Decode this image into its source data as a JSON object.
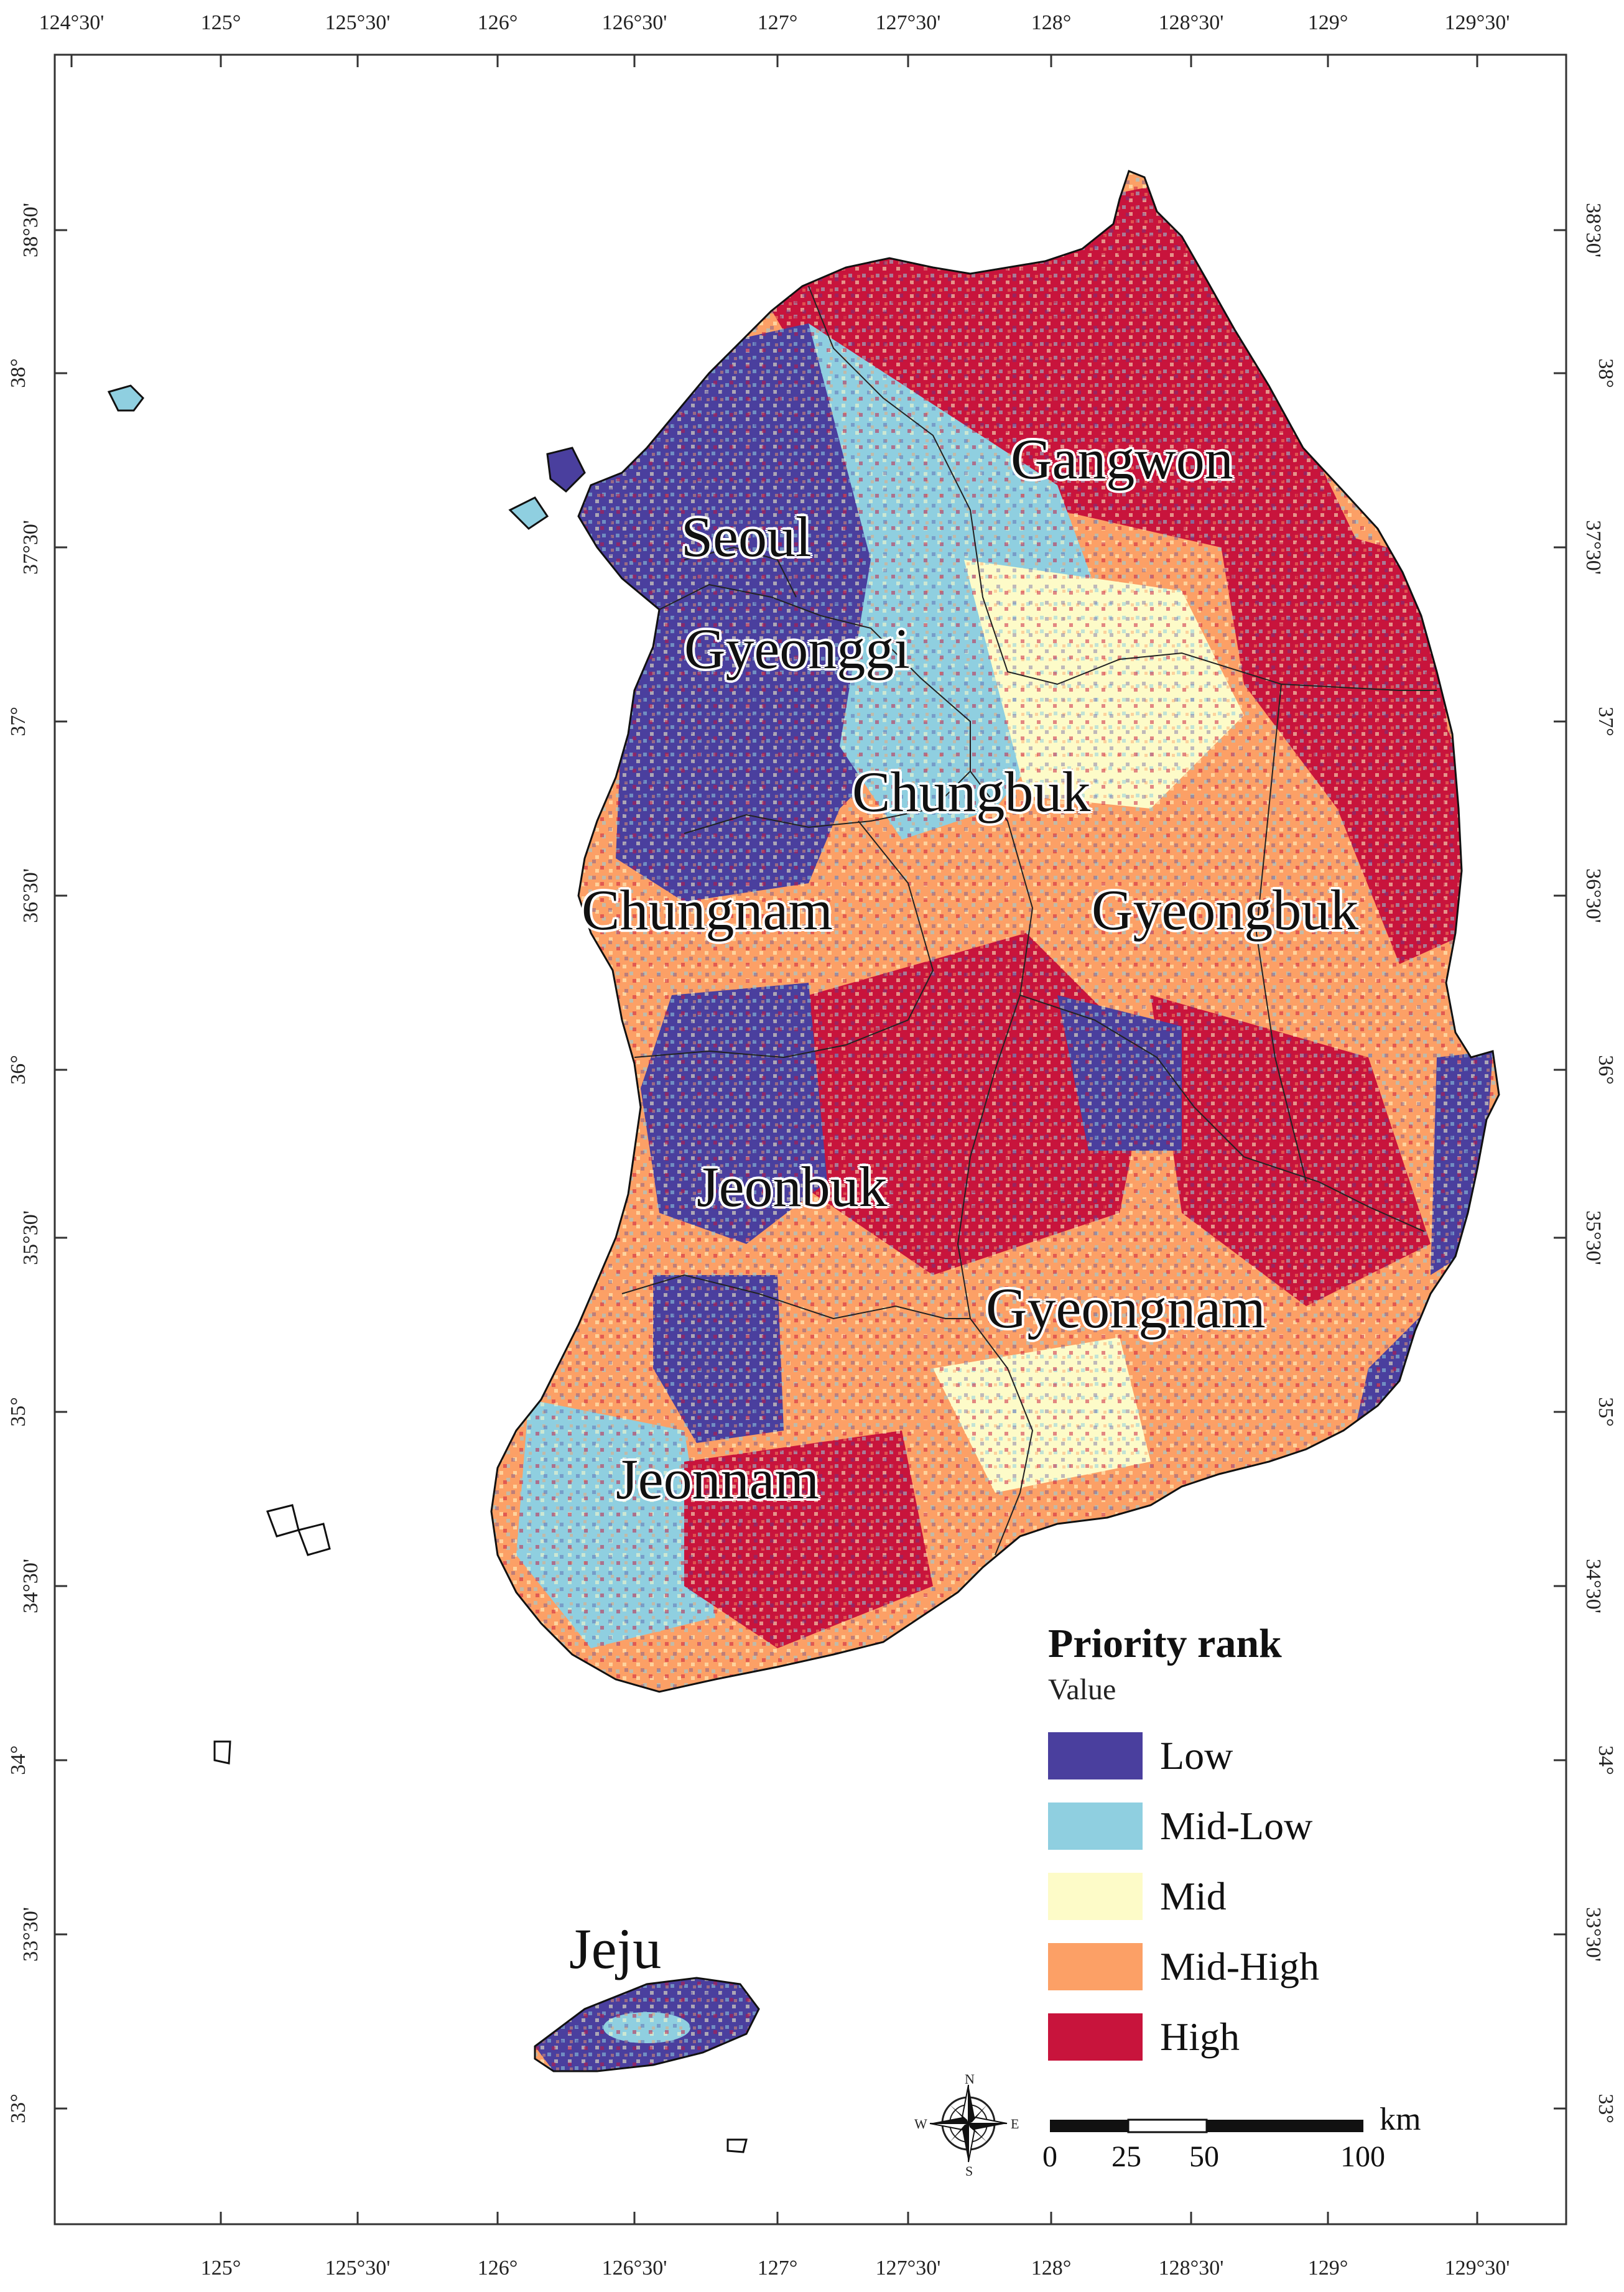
{
  "map": {
    "latitude_ticks": [
      "38°30'",
      "38°",
      "37°30'",
      "37°",
      "36°30'",
      "36°",
      "35°30'",
      "35°",
      "34°30'",
      "34°",
      "33°30'",
      "33°"
    ],
    "longitude_ticks_top": [
      "124°30'",
      "125°",
      "125°30'",
      "126°",
      "126°30'",
      "127°",
      "127°30'",
      "128°",
      "128°30'",
      "129°",
      "129°30'"
    ],
    "longitude_ticks_bottom": [
      "125°",
      "125°30'",
      "126°",
      "126°30'",
      "127°",
      "127°30'",
      "128°",
      "128°30'",
      "129°",
      "129°30'"
    ],
    "regions": [
      {
        "name": "Gangwon"
      },
      {
        "name": "Seoul"
      },
      {
        "name": "Gyeonggi"
      },
      {
        "name": "Chungbuk"
      },
      {
        "name": "Chungnam"
      },
      {
        "name": "Gyeongbuk"
      },
      {
        "name": "Jeonbuk"
      },
      {
        "name": "Gyeongnam"
      },
      {
        "name": "Jeonnam"
      },
      {
        "name": "Jeju"
      }
    ]
  },
  "legend": {
    "title": "Priority rank",
    "subtitle": "Value",
    "classes": [
      {
        "label": "Low",
        "color": "#4a3f9e"
      },
      {
        "label": "Mid-Low",
        "color": "#8fcfe0"
      },
      {
        "label": "Mid",
        "color": "#fdfbc8"
      },
      {
        "label": "Mid-High",
        "color": "#fca066"
      },
      {
        "label": "High",
        "color": "#c8143c"
      }
    ]
  },
  "scale_bar": {
    "unit": "km",
    "labels": [
      "0",
      "25",
      "50",
      "100"
    ]
  },
  "compass": {
    "n": "N",
    "s": "S",
    "e": "E",
    "w": "W"
  }
}
